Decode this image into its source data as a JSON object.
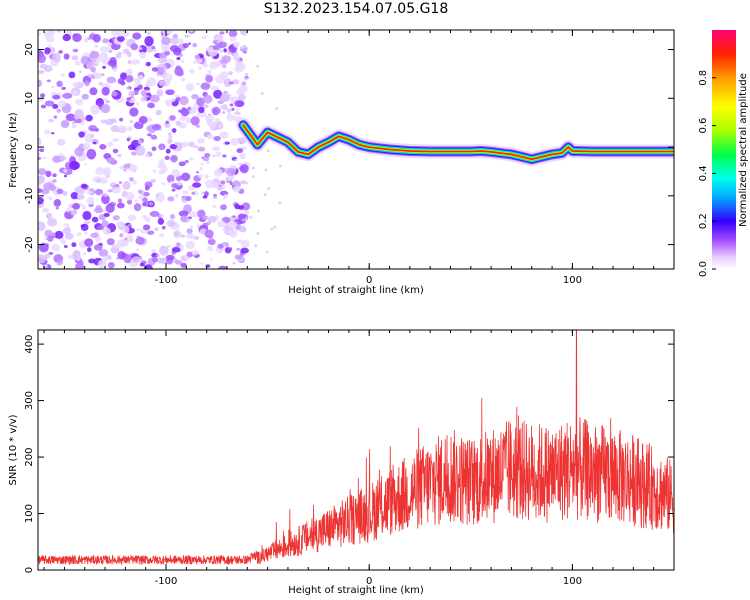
{
  "title": "S132.2023.154.07.05.G18",
  "chart_data": [
    {
      "type": "heatmap",
      "xlabel": "Height of straight line (km)",
      "ylabel": "Frequency (Hz)",
      "xlim": [
        -163,
        150
      ],
      "ylim": [
        -25,
        24
      ],
      "xticks": [
        -100,
        0,
        100
      ],
      "yticks": [
        -20,
        -10,
        0,
        10,
        20
      ],
      "noise_region_x": [
        -163,
        -63
      ],
      "signal_track": {
        "x": [
          -62,
          -55,
          -50,
          -45,
          -40,
          -35,
          -30,
          -25,
          -20,
          -15,
          -10,
          -5,
          0,
          10,
          20,
          30,
          40,
          50,
          55,
          60,
          70,
          75,
          80,
          85,
          90,
          95,
          98,
          100,
          110,
          120,
          130,
          140,
          150
        ],
        "y": [
          4.5,
          0.5,
          3,
          2,
          1,
          -1,
          -1.5,
          0,
          1,
          2.2,
          1.5,
          0.5,
          0,
          -0.5,
          -0.8,
          -0.9,
          -0.9,
          -0.9,
          -0.8,
          -1.0,
          -1.5,
          -2,
          -2.5,
          -2,
          -1.5,
          -1.2,
          0,
          -0.8,
          -0.9,
          -0.9,
          -0.9,
          -0.9,
          -0.9
        ]
      },
      "colorbar": {
        "label": "Normalized spectral amplitude",
        "range": [
          0,
          1
        ],
        "ticks": [
          "0.0",
          "0.2",
          "0.4",
          "0.6",
          "0.8"
        ]
      }
    },
    {
      "type": "line",
      "xlabel": "Height of straight line (km)",
      "ylabel": "SNR (10 * v/v)",
      "xlim": [
        -163,
        150
      ],
      "ylim": [
        0,
        425
      ],
      "xticks": [
        -100,
        0,
        100
      ],
      "yticks": [
        0,
        100,
        200,
        300,
        400
      ],
      "color": "#ee3333",
      "envelope": {
        "x": [
          -163,
          -100,
          -60,
          -52,
          -45,
          -40,
          -30,
          -20,
          -10,
          0,
          10,
          20,
          30,
          40,
          50,
          60,
          70,
          80,
          90,
          100,
          110,
          120,
          130,
          140,
          150
        ],
        "y": [
          20,
          20,
          20,
          35,
          50,
          60,
          80,
          100,
          120,
          140,
          165,
          190,
          210,
          230,
          215,
          230,
          245,
          240,
          235,
          250,
          240,
          230,
          220,
          200,
          175
        ]
      },
      "peak": {
        "x": 102,
        "y": 425
      }
    }
  ]
}
